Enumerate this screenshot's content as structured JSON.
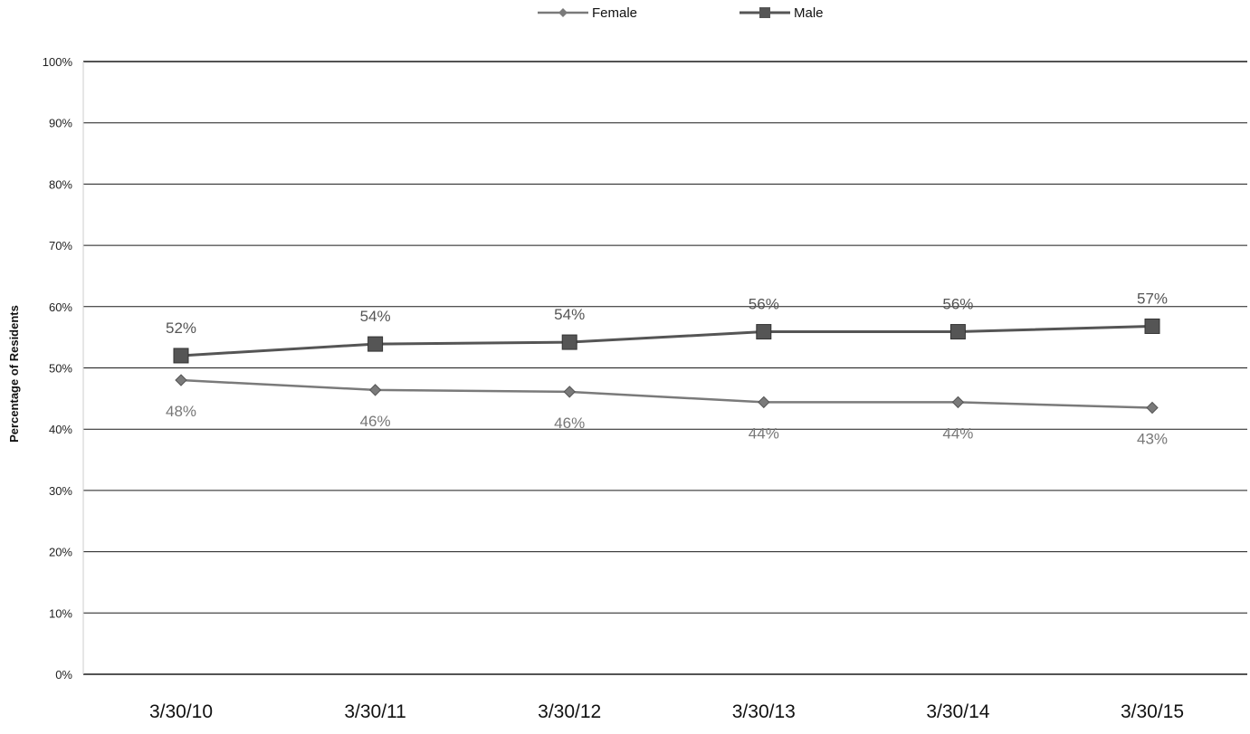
{
  "chart_data": {
    "type": "line",
    "title": "",
    "xlabel": "",
    "ylabel": "Percentage of Residents",
    "x": [
      "3/30/10",
      "3/30/11",
      "3/30/12",
      "3/30/13",
      "3/30/14",
      "3/30/15"
    ],
    "ylim": [
      0,
      100
    ],
    "yticks": [
      "0%",
      "10%",
      "20%",
      "30%",
      "40%",
      "50%",
      "60%",
      "70%",
      "80%",
      "90%",
      "100%"
    ],
    "grid": true,
    "legend_position": "top-center",
    "series": [
      {
        "name": "Female",
        "values": [
          48,
          46.4,
          46.1,
          44.4,
          44.4,
          43.5
        ],
        "labels": [
          "48%",
          "46%",
          "46%",
          "44%",
          "44%",
          "43%"
        ],
        "marker": "diamond",
        "color": "#7a7a7a"
      },
      {
        "name": "Male",
        "values": [
          52,
          53.9,
          54.2,
          55.9,
          55.9,
          56.8
        ],
        "labels": [
          "52%",
          "54%",
          "54%",
          "56%",
          "56%",
          "57%"
        ],
        "marker": "square",
        "color": "#555555"
      }
    ]
  }
}
